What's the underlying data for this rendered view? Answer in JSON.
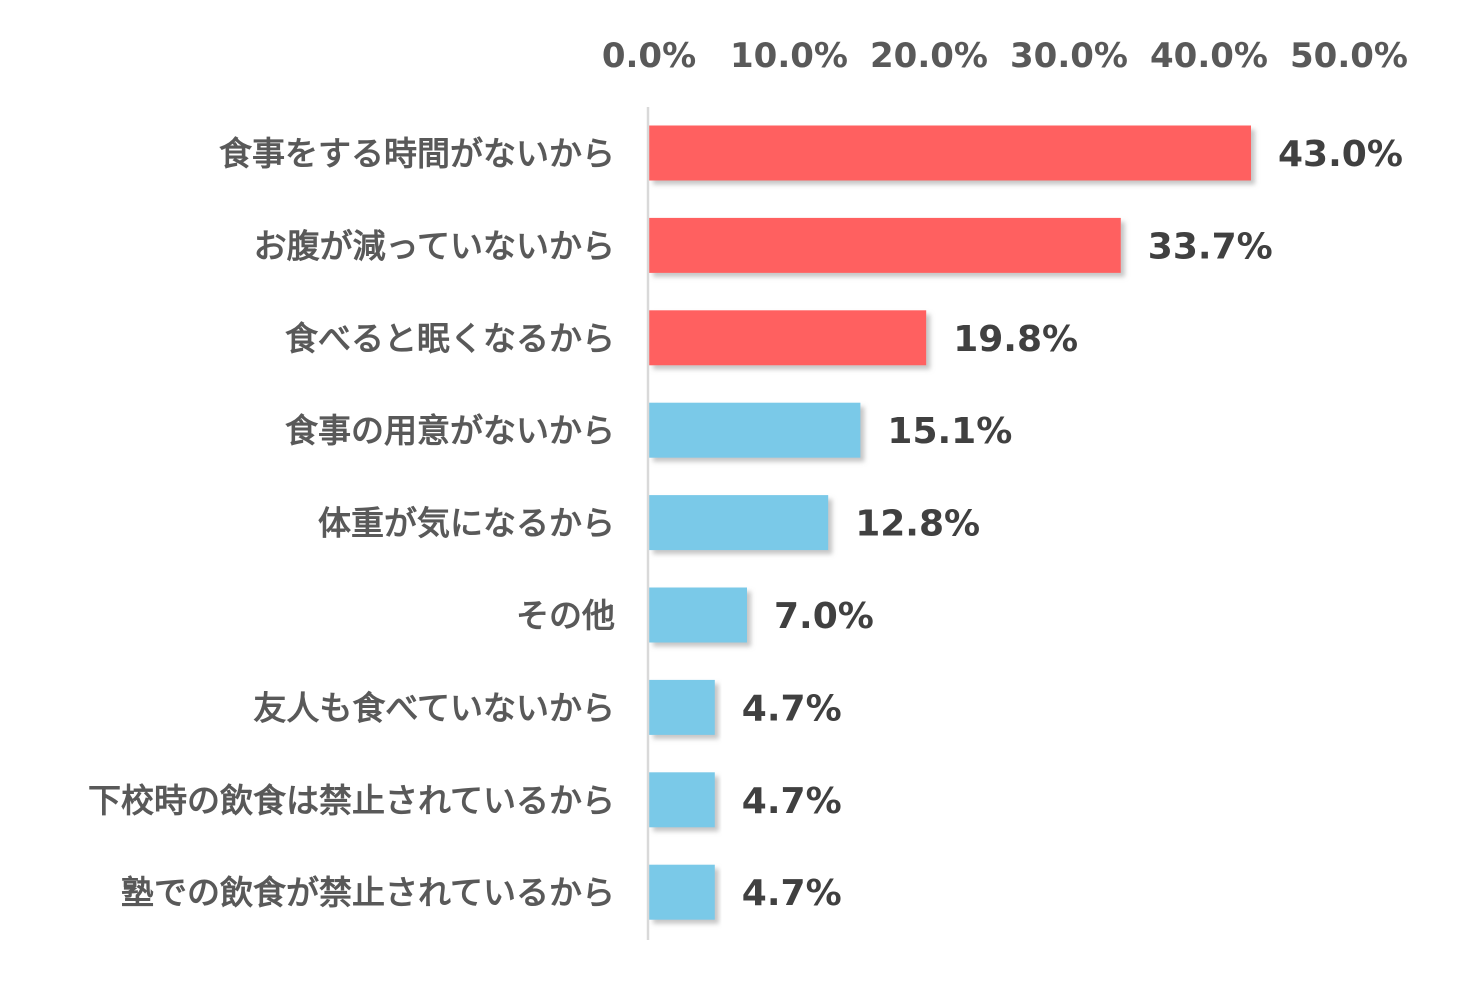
{
  "chart_data": {
    "type": "bar",
    "orientation": "horizontal",
    "title": "",
    "xlabel": "",
    "ylabel": "",
    "xlim": [
      0,
      50
    ],
    "x_axis_position": "top",
    "grid": false,
    "legend": "none",
    "x_ticks": [
      "0.0%",
      "10.0%",
      "20.0%",
      "30.0%",
      "40.0%",
      "50.0%"
    ],
    "categories": [
      "食事をする時間がないから",
      "お腹が減っていないから",
      "食べると眠くなるから",
      "食事の用意がないから",
      "体重が気になるから",
      "その他",
      "友人も食べていないから",
      "下校時の飲食は禁止されているから",
      "塾での飲食が禁止されているから"
    ],
    "values": [
      43.0,
      33.7,
      19.8,
      15.1,
      12.8,
      7.0,
      4.7,
      4.7,
      4.7
    ],
    "data_labels": [
      "43.0%",
      "33.7%",
      "19.8%",
      "15.1%",
      "12.8%",
      "7.0%",
      "4.7%",
      "4.7%",
      "4.7%"
    ],
    "highlight_count": 3,
    "colors": {
      "highlight": "#ff6060",
      "normal": "#7ac9e8",
      "axis": "#d9d9d9",
      "shadow": "#bfbfbf"
    }
  }
}
